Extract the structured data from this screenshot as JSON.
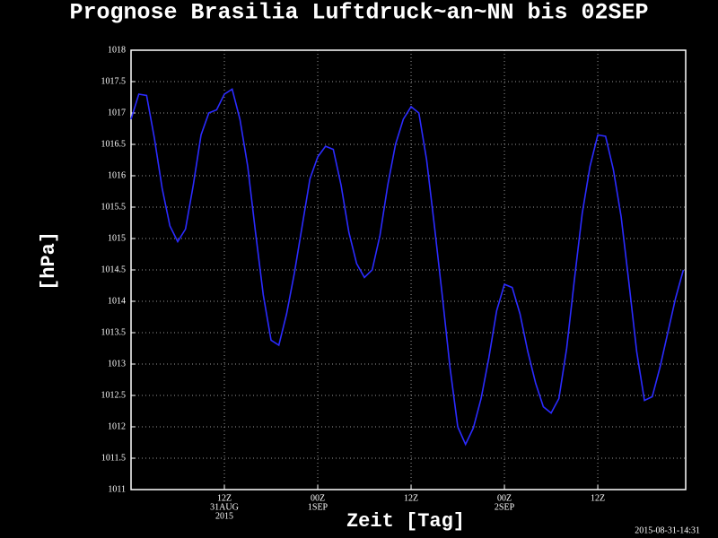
{
  "chart_data": {
    "type": "line",
    "title": "Prognose Brasilia Luftdruck~an~NN bis 02SEP",
    "y_label": "[hPa]",
    "x_label": "Zeit [Tag]",
    "timestamp": "2015-08-31-14:31",
    "x": [
      0,
      1,
      2,
      3,
      4,
      5,
      6,
      7,
      8,
      9,
      10,
      11,
      12,
      13,
      14,
      15,
      16,
      17,
      18,
      19,
      20,
      21,
      22,
      23,
      24,
      25,
      26,
      27,
      28,
      29,
      30,
      31,
      32,
      33,
      34,
      35,
      36,
      37,
      38,
      39,
      40,
      41,
      42,
      43,
      44,
      45,
      46,
      47,
      48,
      49,
      50,
      51,
      52,
      53,
      54,
      55,
      56,
      57,
      58,
      59,
      60,
      61,
      62,
      63,
      64,
      65,
      66,
      67,
      68,
      69,
      70,
      71
    ],
    "series": [
      {
        "color": "#2b2bff",
        "values": [
          1016.9,
          1017.3,
          1017.28,
          1016.6,
          1015.8,
          1015.2,
          1014.95,
          1015.15,
          1015.85,
          1016.65,
          1017.0,
          1017.05,
          1017.3,
          1017.38,
          1016.9,
          1016.15,
          1015.1,
          1014.1,
          1013.38,
          1013.3,
          1013.8,
          1014.45,
          1015.2,
          1015.95,
          1016.3,
          1016.47,
          1016.42,
          1015.85,
          1015.1,
          1014.6,
          1014.38,
          1014.5,
          1015.05,
          1015.85,
          1016.5,
          1016.9,
          1017.1,
          1017.0,
          1016.25,
          1015.2,
          1014.1,
          1012.95,
          1012.0,
          1011.72,
          1011.98,
          1012.45,
          1013.1,
          1013.85,
          1014.27,
          1014.22,
          1013.8,
          1013.2,
          1012.7,
          1012.32,
          1012.22,
          1012.45,
          1013.25,
          1014.35,
          1015.4,
          1016.15,
          1016.65,
          1016.63,
          1016.1,
          1015.35,
          1014.3,
          1013.2,
          1012.42,
          1012.48,
          1012.95,
          1013.5,
          1014.05,
          1014.5
        ]
      }
    ],
    "xlim": [
      0,
      71.3
    ],
    "ylim": [
      1011,
      1018
    ],
    "xticks": [
      {
        "value": 12,
        "label": [
          "12Z",
          "31AUG",
          "2015"
        ]
      },
      {
        "value": 24,
        "label": [
          "00Z",
          "1SEP"
        ]
      },
      {
        "value": 36,
        "label": [
          "12Z"
        ]
      },
      {
        "value": 48,
        "label": [
          "00Z",
          "2SEP"
        ]
      },
      {
        "value": 60,
        "label": [
          "12Z"
        ]
      }
    ],
    "yticks": [
      1011,
      1011.5,
      1012,
      1012.5,
      1013,
      1013.5,
      1014,
      1014.5,
      1015,
      1015.5,
      1016,
      1016.5,
      1017,
      1017.5,
      1018
    ],
    "grid": true
  }
}
